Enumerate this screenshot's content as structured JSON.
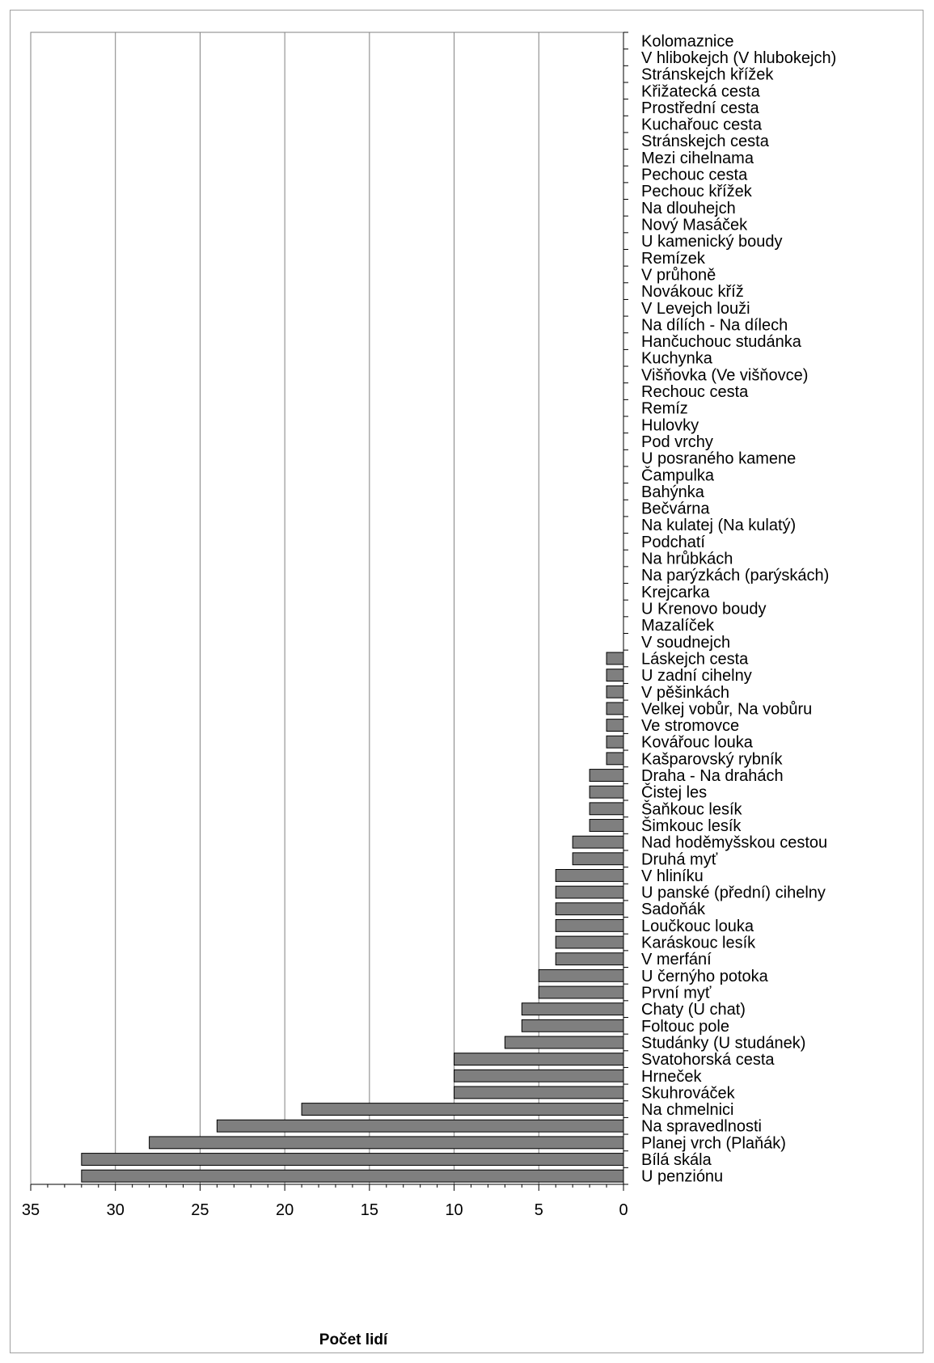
{
  "chart_data": {
    "type": "bar",
    "orientation": "horizontal",
    "xlabel": "Počet lidí",
    "ylabel": "",
    "xlim": [
      0,
      35
    ],
    "x_reversed": true,
    "xticks": [
      "35",
      "30",
      "25",
      "20",
      "15",
      "10",
      "5",
      "0"
    ],
    "grid": "vertical",
    "bar_color": "#7f7f7f",
    "categories": [
      "Kolomaznice",
      "V hlibokejch (V hlubokejch)",
      "Stránskejch křížek",
      "Křižatecká cesta",
      "Prostřední cesta",
      "Kuchařouc cesta",
      "Stránskejch cesta",
      "Mezi cihelnama",
      "Pechouc cesta",
      "Pechouc křížek",
      "Na dlouhejch",
      "Nový Masáček",
      "U kamenický boudy",
      "Remízek",
      "V průhoně",
      "Novákouc kříž",
      "V Levejch louži",
      "Na dílích - Na dílech",
      "Hančuchouc studánka",
      "Kuchynka",
      "Višňovka (Ve višňovce)",
      "Rechouc cesta",
      "Remíz",
      "Hulovky",
      "Pod vrchy",
      "U posraného kamene",
      "Čampulka",
      "Bahýnka",
      "Bečvárna",
      "Na kulatej (Na kulatý)",
      "Podchatí",
      "Na hrůbkách",
      "Na parýzkách (parýskách)",
      "Krejcarka",
      "U Krenovo boudy",
      "Mazalíček",
      "V soudnejch",
      "Láskejch cesta",
      "U zadní cihelny",
      "V pěšinkách",
      "Velkej vobůr, Na vobůru",
      "Ve stromovce",
      "Kovářouc louka",
      "Kašparovský rybník",
      "Draha - Na drahách",
      "Čistej les",
      "Šaňkouc lesík",
      "Šimkouc lesík",
      "Nad hoděmyšskou cestou",
      "Druhá myť",
      "V hliníku",
      "U panské (přední) cihelny",
      "Sadoňák",
      "Loučkouc louka",
      "Karáskouc lesík",
      "V merfání",
      "U černýho potoka",
      "První myť",
      "Chaty (U chat)",
      "Foltouc pole",
      "Studánky (U studánek)",
      "Svatohorská cesta",
      "Hrneček",
      "Skuhrováček",
      "Na chmelnici",
      "Na spravedlnosti",
      "Planej vrch (Plaňák)",
      "Bílá skála",
      "U penziónu"
    ],
    "values": [
      0,
      0,
      0,
      0,
      0,
      0,
      0,
      0,
      0,
      0,
      0,
      0,
      0,
      0,
      0,
      0,
      0,
      0,
      0,
      0,
      0,
      0,
      0,
      0,
      0,
      0,
      0,
      0,
      0,
      0,
      0,
      0,
      0,
      0,
      0,
      0,
      0,
      1,
      1,
      1,
      1,
      1,
      1,
      1,
      2,
      2,
      2,
      2,
      3,
      3,
      4,
      4,
      4,
      4,
      4,
      4,
      5,
      5,
      6,
      6,
      7,
      10,
      10,
      10,
      19,
      24,
      28,
      32,
      32
    ]
  }
}
